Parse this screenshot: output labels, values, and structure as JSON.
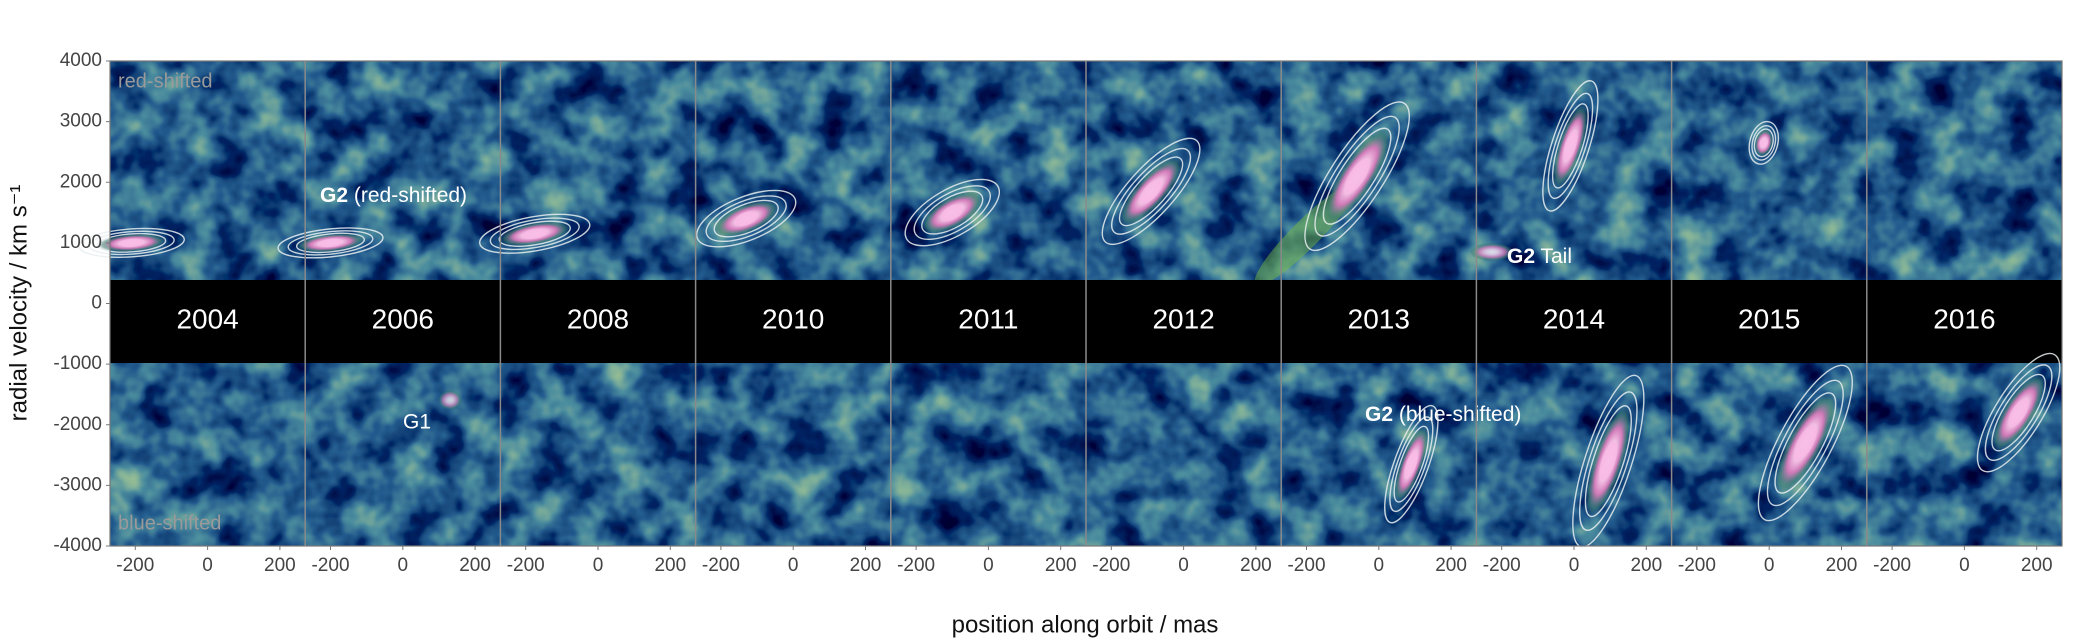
{
  "chart_data": {
    "type": "pv-panels",
    "ylabel": "radial velocity / km s⁻¹",
    "xlabel": "position along orbit / mas",
    "ylim": [
      -4000,
      4000
    ],
    "yticks": [
      -4000,
      -3000,
      -2000,
      -1000,
      0,
      1000,
      2000,
      3000,
      4000
    ],
    "xlim": [
      -270,
      270
    ],
    "xticks": [
      -200,
      0,
      200
    ],
    "corner_labels": [
      "red-shifted",
      "blue-shifted"
    ],
    "panels": [
      {
        "year": "2004"
      },
      {
        "year": "2006",
        "annotations": [
          "G2 (red-shifted)",
          "G1"
        ]
      },
      {
        "year": "2008"
      },
      {
        "year": "2010"
      },
      {
        "year": "2011"
      },
      {
        "year": "2012"
      },
      {
        "year": "2013",
        "annotations": [
          "G2 (blue-shifted)"
        ]
      },
      {
        "year": "2014",
        "annotations": [
          "G2 Tail"
        ]
      },
      {
        "year": "2015"
      },
      {
        "year": "2016"
      }
    ],
    "series": [
      {
        "color": "#f7b8e4",
        "x": [
          -210,
          -200,
          -175,
          -130,
          -100,
          -90,
          -60,
          -10,
          -15,
          null
        ],
        "values": [
          1000,
          1000,
          1150,
          1400,
          1500,
          1850,
          2100,
          2600,
          2650,
          null
        ]
      },
      {
        "color": "#f7b8e4",
        "x": [
          null,
          null,
          null,
          null,
          null,
          null,
          90,
          95,
          100,
          150
        ],
        "values": [
          null,
          null,
          null,
          null,
          null,
          null,
          -2650,
          -2600,
          -2300,
          -1800
        ]
      }
    ]
  }
}
